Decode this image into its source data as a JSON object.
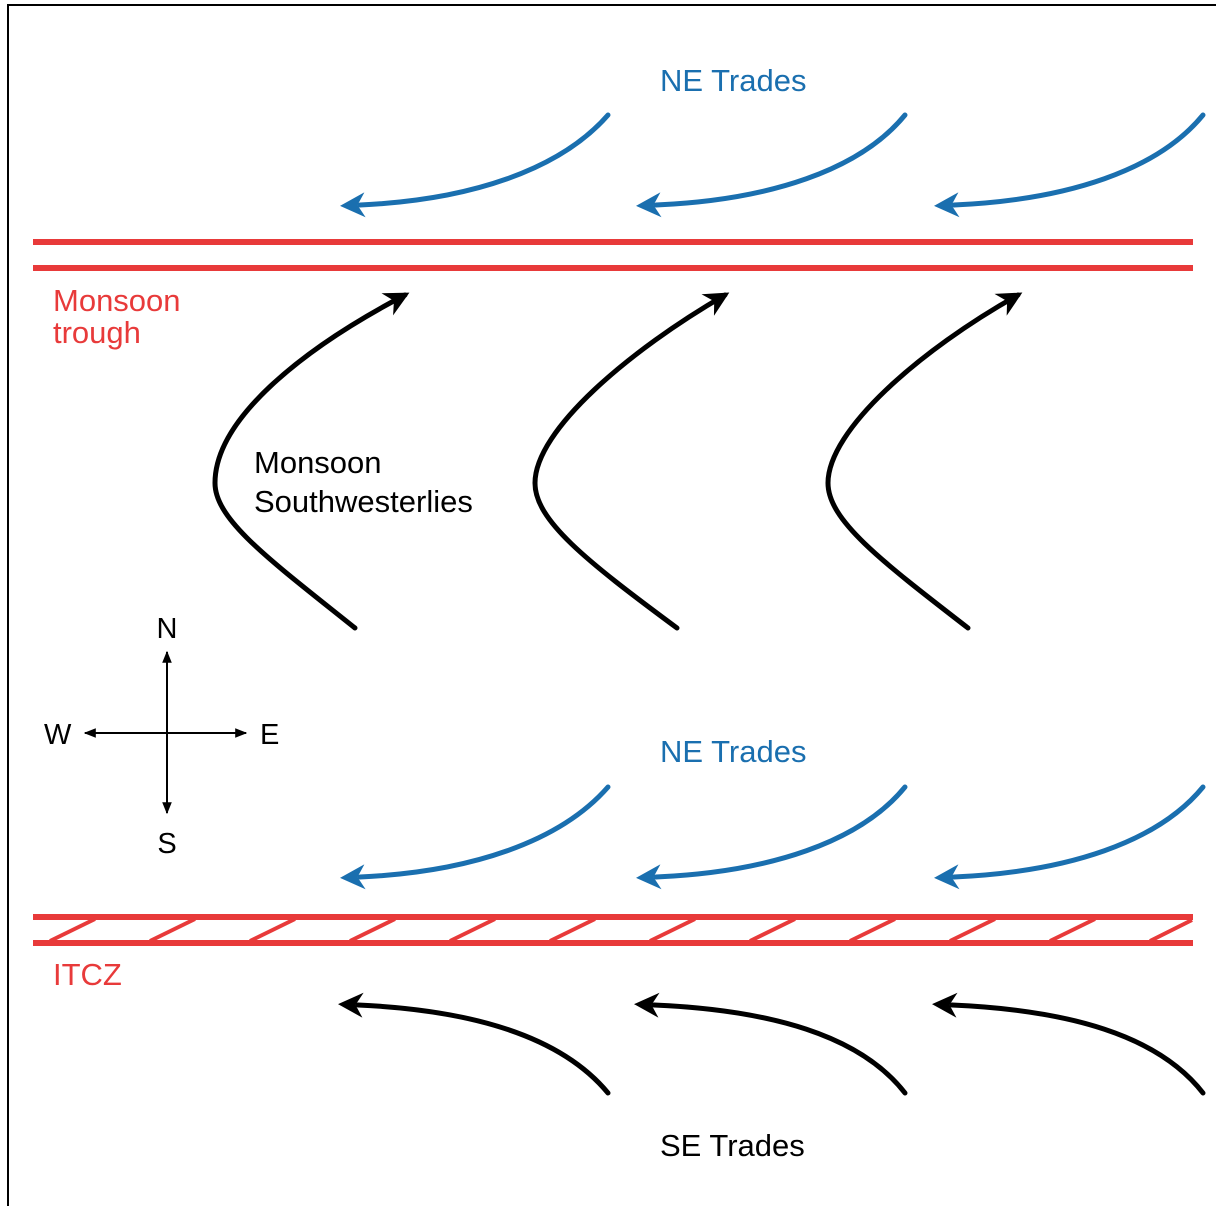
{
  "labels": {
    "ne_trades_upper": "NE Trades",
    "monsoon_trough_line1": "Monsoon",
    "monsoon_trough_line2": "trough",
    "monsoon_sw_line1": "Monsoon",
    "monsoon_sw_line2": "Southwesterlies",
    "ne_trades_lower": "NE Trades",
    "itcz": "ITCZ",
    "se_trades": "SE Trades"
  },
  "compass": {
    "north": "N",
    "south": "S",
    "east": "E",
    "west": "W"
  },
  "colors": {
    "trade_arrow": "#1a6faf",
    "trade_label": "#1a6faf",
    "trough_line": "#e83a3a",
    "trough_label": "#e83a3a",
    "wind_arrow": "#000000",
    "frame": "#000000"
  }
}
